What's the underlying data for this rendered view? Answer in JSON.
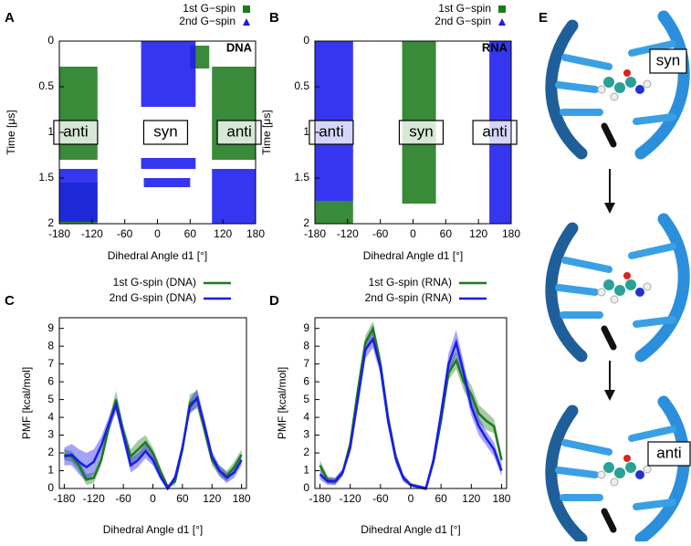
{
  "chart_data": [
    {
      "type": "range",
      "panel_label": "A",
      "annotations": [
        "DNA",
        "anti",
        "syn",
        "anti"
      ],
      "xlabel": "Dihedral Angle d1 [°]",
      "ylabel": "Time [μs]",
      "xlim": [
        -180,
        180
      ],
      "xticks": [
        -180,
        -120,
        -60,
        0,
        60,
        120,
        180
      ],
      "ylim": [
        0,
        2
      ],
      "yticks": [
        0,
        0.5,
        1,
        1.5,
        2
      ],
      "y_reversed": true,
      "series": [
        {
          "name": "1st G−spin",
          "color": "#1e7a1e",
          "marker": "square",
          "values": [
            {
              "x": [
                -180,
                -110
              ],
              "y": [
                0.28,
                1.3
              ]
            },
            {
              "x": [
                100,
                180
              ],
              "y": [
                0.28,
                1.3
              ]
            },
            {
              "x": [
                -180,
                -110
              ],
              "y": [
                1.55,
                2
              ]
            },
            {
              "x": [
                60,
                95
              ],
              "y": [
                0.05,
                0.3
              ]
            }
          ]
        },
        {
          "name": "2nd G−spin",
          "color": "#1a1aee",
          "marker": "triangle",
          "values": [
            {
              "x": [
                -30,
                70
              ],
              "y": [
                0,
                0.72
              ]
            },
            {
              "x": [
                -30,
                70
              ],
              "y": [
                1.28,
                1.4
              ]
            },
            {
              "x": [
                -25,
                60
              ],
              "y": [
                1.5,
                1.6
              ]
            },
            {
              "x": [
                -180,
                -110
              ],
              "y": [
                1.4,
                1.98
              ]
            },
            {
              "x": [
                100,
                180
              ],
              "y": [
                1.4,
                2
              ]
            }
          ]
        }
      ]
    },
    {
      "type": "range",
      "panel_label": "B",
      "annotations": [
        "RNA",
        "anti",
        "syn",
        "anti"
      ],
      "xlabel": "Dihedral Angle d1 [°]",
      "ylabel": "Time [μs]",
      "xlim": [
        -180,
        180
      ],
      "xticks": [
        -180,
        -120,
        -60,
        0,
        60,
        120,
        180
      ],
      "ylim": [
        0,
        2
      ],
      "yticks": [
        0,
        0.5,
        1,
        1.5,
        2
      ],
      "y_reversed": true,
      "series": [
        {
          "name": "1st G−spin",
          "color": "#1e7a1e",
          "marker": "square",
          "values": [
            {
              "x": [
                -20,
                42
              ],
              "y": [
                0,
                1.78
              ]
            },
            {
              "x": [
                -180,
                -110
              ],
              "y": [
                1.75,
                2
              ]
            }
          ]
        },
        {
          "name": "2nd G−spin",
          "color": "#1a1aee",
          "marker": "triangle",
          "values": [
            {
              "x": [
                -180,
                -110
              ],
              "y": [
                0,
                1.75
              ]
            },
            {
              "x": [
                140,
                180
              ],
              "y": [
                0,
                2
              ]
            }
          ]
        }
      ]
    },
    {
      "type": "line",
      "panel_label": "C",
      "xlabel": "Dihedral Angle d1 [°]",
      "ylabel": "PMF [kcal/mol]",
      "xlim": [
        -190,
        190
      ],
      "xticks": [
        -180,
        -120,
        -60,
        0,
        60,
        120,
        180
      ],
      "ylim": [
        0,
        9.6
      ],
      "yticks": [
        0,
        1,
        2,
        3,
        4,
        5,
        6,
        7,
        8,
        9
      ],
      "x": [
        -180,
        -165,
        -150,
        -135,
        -120,
        -105,
        -90,
        -75,
        -60,
        -45,
        -30,
        -15,
        0,
        15,
        30,
        45,
        60,
        75,
        90,
        105,
        120,
        135,
        150,
        165,
        180
      ],
      "series": [
        {
          "name": "1st G-spin (DNA)",
          "color": "#1e7a1e",
          "values": [
            1.9,
            1.8,
            1.3,
            0.5,
            0.6,
            1.6,
            3.4,
            5.0,
            3.2,
            1.8,
            2.2,
            2.6,
            2.0,
            1.0,
            0.1,
            0.4,
            2.2,
            4.8,
            5.0,
            3.3,
            1.6,
            1.0,
            0.7,
            1.2,
            1.9
          ],
          "errors": [
            0.3,
            0.3,
            0.3,
            0.3,
            0.3,
            0.3,
            0.4,
            0.5,
            0.4,
            0.4,
            0.5,
            0.4,
            0.3,
            0.2,
            0.1,
            0.2,
            0.3,
            0.5,
            0.5,
            0.4,
            0.3,
            0.3,
            0.3,
            0.3,
            0.3
          ]
        },
        {
          "name": "2nd G-spin (DNA)",
          "color": "#1a1aee",
          "values": [
            1.8,
            1.9,
            1.5,
            1.2,
            1.5,
            2.4,
            3.6,
            4.7,
            3.0,
            1.3,
            1.6,
            2.1,
            1.6,
            0.7,
            0.0,
            0.6,
            2.3,
            4.6,
            5.1,
            3.5,
            1.8,
            1.0,
            0.6,
            0.9,
            1.6
          ],
          "errors": [
            0.5,
            0.6,
            0.7,
            0.8,
            0.7,
            0.5,
            0.4,
            0.4,
            0.4,
            0.4,
            0.4,
            0.4,
            0.3,
            0.2,
            0.1,
            0.2,
            0.3,
            0.4,
            0.5,
            0.4,
            0.3,
            0.3,
            0.3,
            0.3,
            0.3
          ]
        }
      ]
    },
    {
      "type": "line",
      "panel_label": "D",
      "xlabel": "Dihedral Angle d1 [°]",
      "ylabel": "PMF [kcal/mol]",
      "xlim": [
        -190,
        190
      ],
      "xticks": [
        -180,
        -120,
        -60,
        0,
        60,
        120,
        180
      ],
      "ylim": [
        0,
        9.6
      ],
      "yticks": [
        0,
        1,
        2,
        3,
        4,
        5,
        6,
        7,
        8,
        9
      ],
      "x": [
        -180,
        -165,
        -150,
        -135,
        -120,
        -105,
        -90,
        -75,
        -60,
        -45,
        -30,
        -15,
        0,
        15,
        30,
        45,
        60,
        75,
        90,
        105,
        120,
        135,
        150,
        165,
        180
      ],
      "series": [
        {
          "name": "1st G-spin (RNA)",
          "color": "#1e7a1e",
          "values": [
            1.3,
            0.5,
            0.4,
            0.9,
            2.5,
            5.5,
            8.2,
            9.0,
            7.0,
            4.0,
            1.8,
            0.6,
            0.2,
            0.1,
            0.0,
            1.5,
            3.8,
            6.5,
            7.2,
            6.0,
            5.3,
            4.2,
            3.8,
            3.5,
            1.6
          ],
          "errors": [
            0.3,
            0.2,
            0.2,
            0.2,
            0.3,
            0.4,
            0.4,
            0.4,
            0.4,
            0.3,
            0.3,
            0.2,
            0.1,
            0.1,
            0.1,
            0.2,
            0.3,
            0.4,
            0.5,
            0.5,
            0.5,
            0.5,
            0.5,
            0.4,
            0.3
          ]
        },
        {
          "name": "2nd G-spin (RNA)",
          "color": "#1a1aee",
          "values": [
            0.8,
            0.4,
            0.4,
            0.9,
            2.3,
            5.0,
            7.8,
            8.4,
            6.8,
            3.8,
            1.7,
            0.6,
            0.2,
            0.1,
            0.0,
            1.6,
            4.2,
            7.0,
            8.2,
            6.5,
            4.6,
            3.5,
            2.8,
            2.2,
            1.0
          ],
          "errors": [
            0.3,
            0.2,
            0.2,
            0.2,
            0.3,
            0.4,
            0.5,
            0.5,
            0.4,
            0.3,
            0.3,
            0.2,
            0.1,
            0.1,
            0.1,
            0.2,
            0.4,
            0.6,
            0.7,
            0.6,
            0.5,
            0.5,
            0.4,
            0.4,
            0.3
          ]
        }
      ]
    }
  ],
  "illustration": {
    "panel_label": "E",
    "labels": [
      "syn",
      "anti"
    ]
  }
}
